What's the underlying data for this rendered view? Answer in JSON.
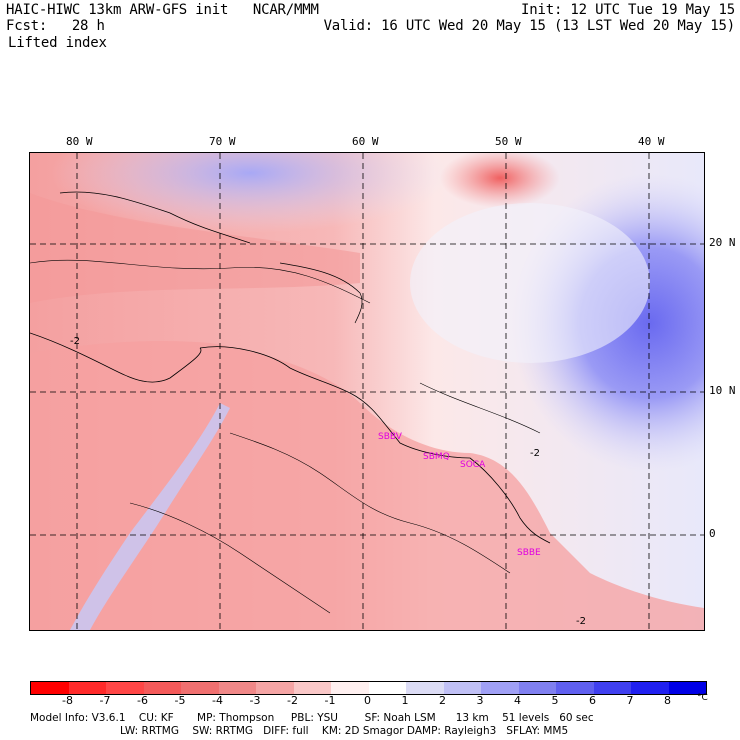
{
  "header": {
    "title_left": "HAIC-HIWC 13km ARW-GFS init   NCAR/MMM",
    "fcst_left": "Fcst:   28 h",
    "field": "Lifted index",
    "init": "Init: 12 UTC Tue 19 May 15",
    "valid": "Valid: 16 UTC Wed 20 May 15 (13 LST Wed 20 May 15)"
  },
  "map": {
    "lon_labels": [
      "80 W",
      "70 W",
      "60 W",
      "50 W",
      "40 W"
    ],
    "lat_labels": [
      "20 N",
      "10 N",
      "0"
    ],
    "contour_labels": [
      "-2",
      "-2",
      "-2"
    ],
    "stations": [
      "SBBV",
      "SBMQ",
      "SOCA",
      "SBBE"
    ]
  },
  "colorbar": {
    "labels": [
      "-8",
      "-7",
      "-6",
      "-5",
      "-4",
      "-3",
      "-2",
      "-1",
      "0",
      "1",
      "2",
      "3",
      "4",
      "5",
      "6",
      "7",
      "8"
    ],
    "unit": "°C",
    "colors": [
      "#ff0000",
      "#ff2a2a",
      "#ff4646",
      "#f45a5a",
      "#f07070",
      "#f08888",
      "#f5a5a5",
      "#fac8c8",
      "#fff0f0",
      "#ffffff",
      "#dcdcf5",
      "#c0c0f5",
      "#a0a0f5",
      "#8080f0",
      "#6060f0",
      "#4040f0",
      "#2020f0",
      "#0000e6"
    ]
  },
  "footer": {
    "line1": "Model Info: V3.6.1    CU: KF       MP: Thompson     PBL: YSU        SF: Noah LSM      13 km    51 levels   60 sec",
    "line2": "LW: RRTMG    SW: RRTMG   DIFF: full    KM: 2D Smagor DAMP: Rayleigh3   SFLAY: MM5"
  }
}
